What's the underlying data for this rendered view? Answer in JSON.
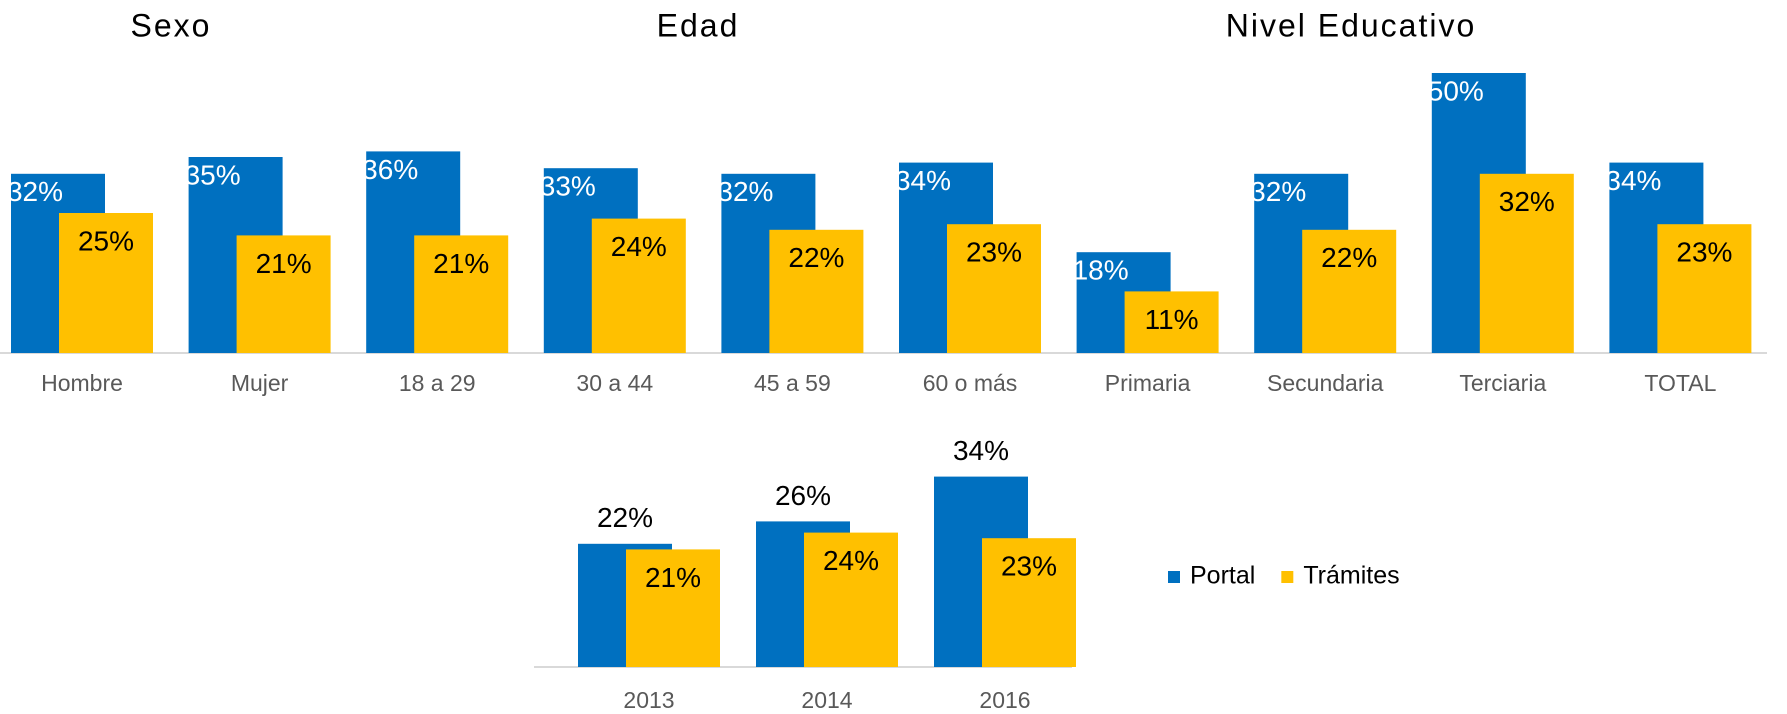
{
  "chart_data": [
    {
      "type": "bar",
      "annotations": [
        "Sexo",
        "Edad",
        "Nivel Educativo"
      ],
      "categories": [
        "Hombre",
        "Mujer",
        "18 a 29",
        "30 a 44",
        "45 a 59",
        "60 o más",
        "Primaria",
        "Secundaria",
        "Terciaria",
        "TOTAL"
      ],
      "series": [
        {
          "name": "Portal",
          "color": "#0070c0",
          "values": [
            32,
            35,
            36,
            33,
            32,
            34,
            18,
            32,
            50,
            34
          ],
          "value_labels": [
            "32%",
            "35%",
            "36%",
            "33%",
            "32%",
            "34%",
            "18%",
            "32%",
            "50%",
            "34%"
          ]
        },
        {
          "name": "Trámites",
          "color": "#ffc000",
          "values": [
            25,
            21,
            21,
            24,
            22,
            23,
            11,
            22,
            32,
            23
          ],
          "value_labels": [
            "25%",
            "21%",
            "21%",
            "24%",
            "22%",
            "23%",
            "11%",
            "22%",
            "32%",
            "23%"
          ]
        }
      ]
    },
    {
      "type": "bar",
      "categories": [
        "2013",
        "2014",
        "2016"
      ],
      "legend": "right",
      "series": [
        {
          "name": "Portal",
          "color": "#0070c0",
          "values": [
            22,
            26,
            34
          ],
          "value_labels": [
            "22%",
            "26%",
            "34%"
          ]
        },
        {
          "name": "Trámites",
          "color": "#ffc000",
          "values": [
            21,
            24,
            23
          ],
          "value_labels": [
            "21%",
            "24%",
            "23%"
          ]
        }
      ]
    }
  ]
}
